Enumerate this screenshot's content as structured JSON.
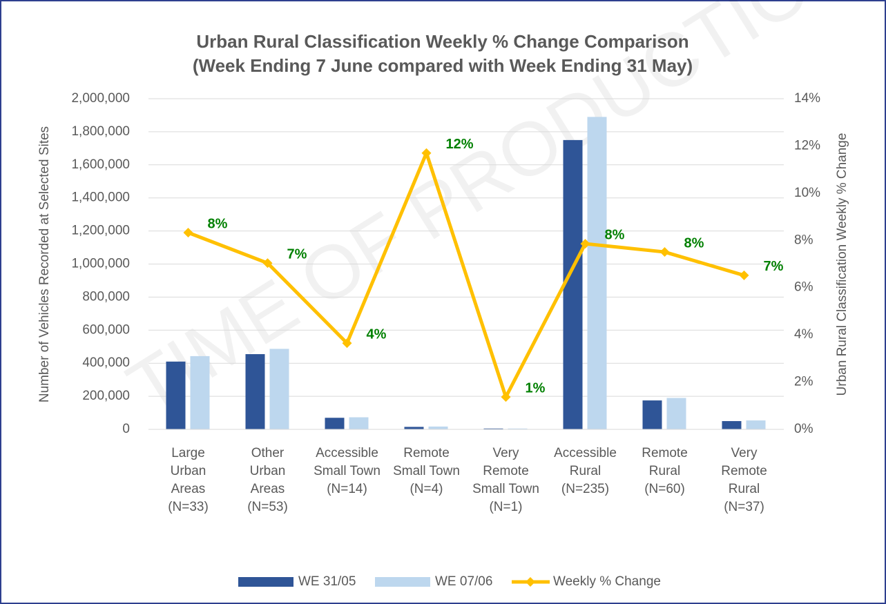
{
  "chart_data": {
    "type": "bar",
    "title": "Urban Rural Classification Weekly % Change Comparison",
    "subtitle": "(Week Ending 7 June compared with Week Ending 31 May)",
    "watermark": "TIME OF PRODUCTION",
    "y_label": "Number of Vehicles Recorded at Selected Sites",
    "y2_label": "Urban Rural Classification Weekly % Change",
    "categories": [
      "Large Urban Areas (N=33)",
      "Other Urban Areas (N=53)",
      "Accessible Small Town (N=14)",
      "Remote Small Town (N=4)",
      "Very Remote Small Town (N=1)",
      "Accessible Rural (N=235)",
      "Remote Rural (N=60)",
      "Very Remote Rural (N=37)"
    ],
    "series": [
      {
        "name": "WE 31/05",
        "color": "#2f5597",
        "values": [
          410000,
          455000,
          70000,
          15000,
          5000,
          1750000,
          175000,
          50000
        ]
      },
      {
        "name": "WE 07/06",
        "color": "#bdd7ee",
        "values": [
          443000,
          487000,
          73000,
          17000,
          5000,
          1890000,
          190000,
          54000
        ]
      },
      {
        "name": "Weekly % Change",
        "type": "line",
        "axis": "y2",
        "color": "#ffc000",
        "label_color": "#008000",
        "values": [
          8.33,
          7.04,
          3.65,
          11.7,
          1.37,
          7.86,
          7.51,
          6.52
        ],
        "value_labels": [
          "8%",
          "7%",
          "4%",
          "12%",
          "1%",
          "8%",
          "8%",
          "7%"
        ]
      }
    ],
    "ylim": [
      0,
      2000000
    ],
    "yticks": [
      0,
      {
        "value": 200000,
        "label": "200,000"
      },
      {
        "value": 400000,
        "label": "400,000"
      },
      {
        "value": 600000,
        "label": "600,000"
      },
      {
        "value": 800000,
        "label": "800,000"
      },
      {
        "value": 1000000,
        "label": "1,000,000"
      },
      {
        "value": 1200000,
        "label": "1,200,000"
      },
      {
        "value": 1400000,
        "label": "1,400,000"
      },
      {
        "value": 1600000,
        "label": "1,600,000"
      },
      {
        "value": 1800000,
        "label": "1,800,000"
      },
      {
        "value": 2000000,
        "label": "2,000,000"
      }
    ],
    "y2lim": [
      0,
      14
    ],
    "y2ticks": [
      {
        "value": 0,
        "label": "0%"
      },
      {
        "value": 2,
        "label": "2%"
      },
      {
        "value": 4,
        "label": "4%"
      },
      {
        "value": 6,
        "label": "6%"
      },
      {
        "value": 8,
        "label": "8%"
      },
      {
        "value": 10,
        "label": "10%"
      },
      {
        "value": 12,
        "label": "12%"
      },
      {
        "value": 14,
        "label": "14%"
      }
    ],
    "grid": true,
    "legend": "bottom"
  }
}
